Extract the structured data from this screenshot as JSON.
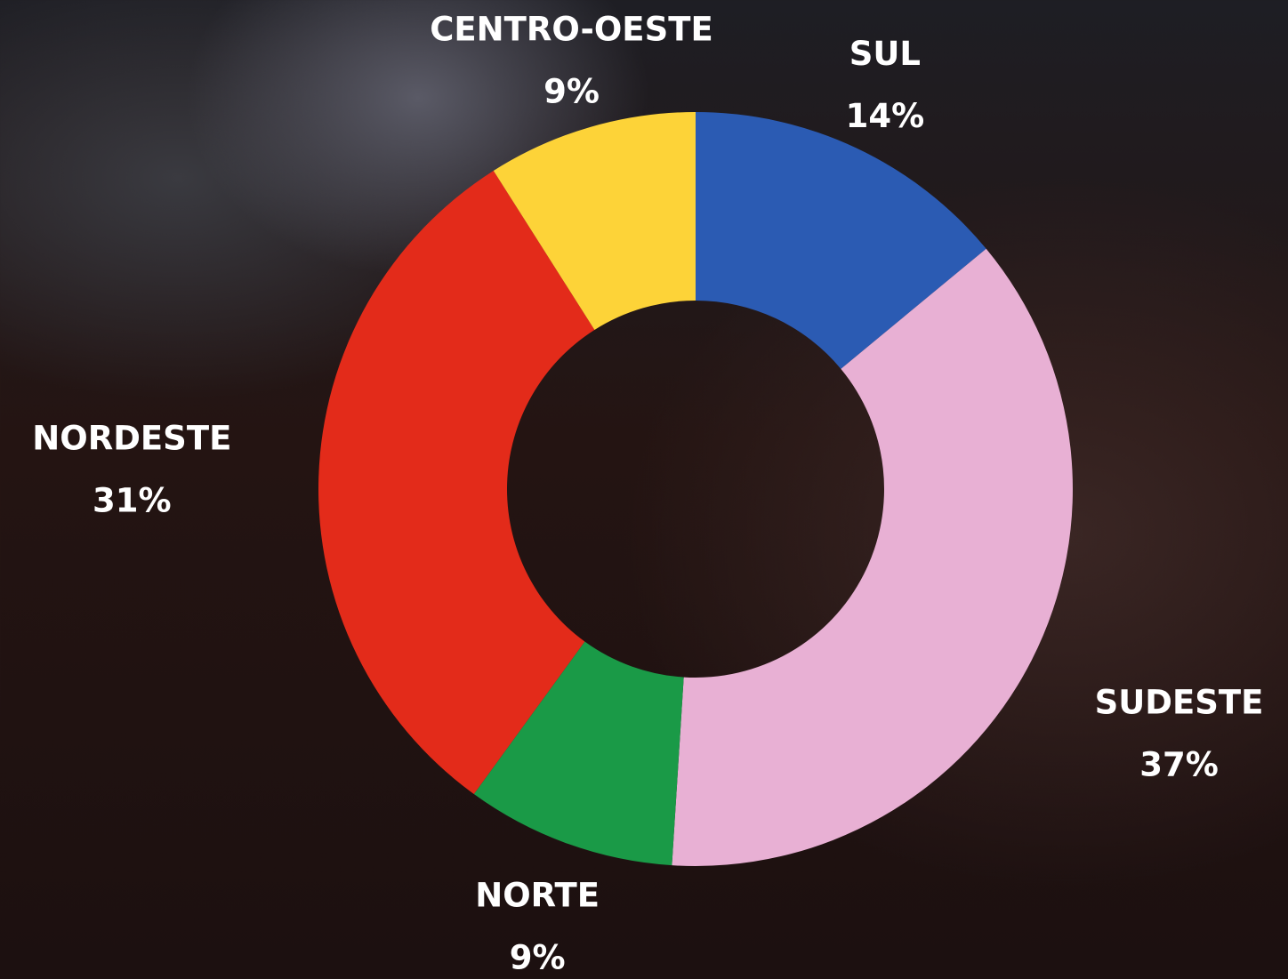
{
  "chart_data": {
    "type": "donut",
    "categories": [
      "SUL",
      "SUDESTE",
      "NORTE",
      "NORDESTE",
      "CENTRO-OESTE"
    ],
    "values": [
      14,
      37,
      9,
      31,
      9
    ],
    "value_labels": [
      "14%",
      "37%",
      "9%",
      "31%",
      "9%"
    ],
    "colors": [
      "#2b5bb3",
      "#e8b0d4",
      "#1a9a47",
      "#e32b1a",
      "#fdd338"
    ]
  }
}
